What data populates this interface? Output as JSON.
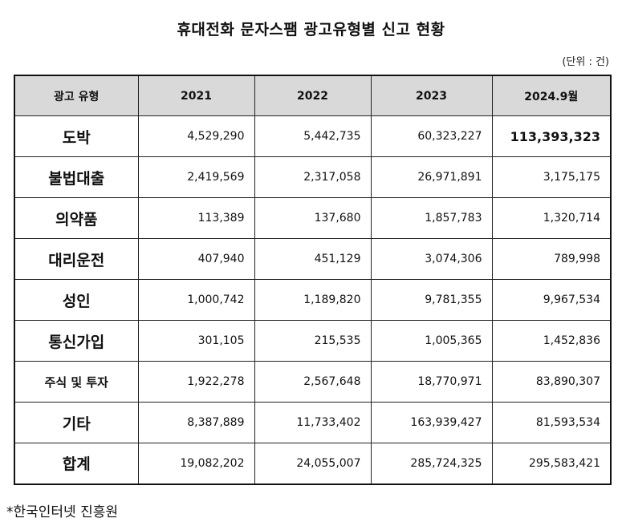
{
  "title": "휴대전화 문자스팸 광고유형별 신고 현황",
  "unit": "(단위 : 건)",
  "table": {
    "headers": [
      "광고 유형",
      "2021",
      "2022",
      "2023",
      "2024.9월"
    ],
    "rows": [
      {
        "type": "도박",
        "v2021": "4,529,290",
        "v2022": "5,442,735",
        "v2023": "60,323,227",
        "v2024": "113,393,323"
      },
      {
        "type": "불법대출",
        "v2021": "2,419,569",
        "v2022": "2,317,058",
        "v2023": "26,971,891",
        "v2024": "3,175,175"
      },
      {
        "type": "의약품",
        "v2021": "113,389",
        "v2022": "137,680",
        "v2023": "1,857,783",
        "v2024": "1,320,714"
      },
      {
        "type": "대리운전",
        "v2021": "407,940",
        "v2022": "451,129",
        "v2023": "3,074,306",
        "v2024": "789,998"
      },
      {
        "type": "성인",
        "v2021": "1,000,742",
        "v2022": "1,189,820",
        "v2023": "9,781,355",
        "v2024": "9,967,534"
      },
      {
        "type": "통신가입",
        "v2021": "301,105",
        "v2022": "215,535",
        "v2023": "1,005,365",
        "v2024": "1,452,836"
      },
      {
        "type": "주식 및 투자",
        "v2021": "1,922,278",
        "v2022": "2,567,648",
        "v2023": "18,770,971",
        "v2024": "83,890,307"
      },
      {
        "type": "기타",
        "v2021": "8,387,889",
        "v2022": "11,733,402",
        "v2023": "163,939,427",
        "v2024": "81,593,534"
      },
      {
        "type": "합계",
        "v2021": "19,082,202",
        "v2022": "24,055,007",
        "v2023": "285,724,325",
        "v2024": "295,583,421"
      }
    ]
  },
  "source": "*한국인터넷 진흥원"
}
